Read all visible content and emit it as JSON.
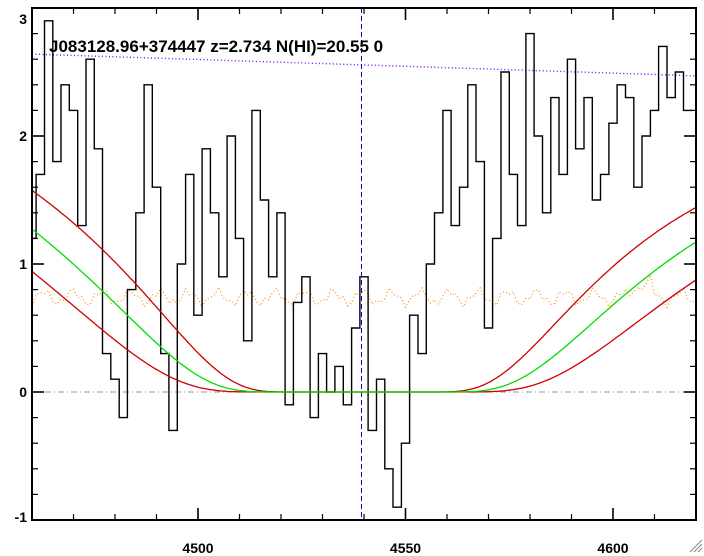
{
  "chart_data": {
    "type": "line",
    "title": "J083128.96+374447 z=2.734 N(HI)=20.55 0",
    "xlabel": "",
    "ylabel": "",
    "xlim": [
      4460,
      4620
    ],
    "ylim": [
      -1,
      3
    ],
    "x_ticks": [
      4500,
      4550,
      4600
    ],
    "y_ticks": [
      -1,
      0,
      1,
      2,
      3
    ],
    "x_minor_step": 10,
    "y_minor_step": 0.2,
    "grid": false,
    "legend": "none",
    "reference_lines": {
      "zero_level": 0,
      "line_center": 4539.4
    },
    "colors": {
      "flux": "#000000",
      "fit": "#00dd00",
      "fit_bounds": "#cc0000",
      "continuum": "#7b00ff",
      "error": "#ff8c00",
      "center_line": "#0000cc",
      "zero_line": "#999999"
    },
    "absorber": {
      "center": 4539.4,
      "log_nhi": 20.55,
      "log_nhi_bounds": [
        20.4,
        20.7
      ]
    },
    "continuum_endpoints": [
      {
        "x": 4460,
        "y": 2.64
      },
      {
        "x": 4620,
        "y": 2.47
      }
    ],
    "flux": {
      "x": [
        4460,
        4462,
        4464,
        4466,
        4468,
        4470,
        4472,
        4474,
        4476,
        4478,
        4480,
        4482,
        4484,
        4486,
        4488,
        4490,
        4492,
        4494,
        4496,
        4498,
        4500,
        4502,
        4504,
        4506,
        4508,
        4510,
        4512,
        4514,
        4516,
        4518,
        4520,
        4522,
        4524,
        4526,
        4528,
        4530,
        4532,
        4534,
        4536,
        4538,
        4540,
        4542,
        4544,
        4546,
        4548,
        4550,
        4552,
        4554,
        4556,
        4558,
        4560,
        4562,
        4564,
        4566,
        4568,
        4570,
        4572,
        4574,
        4576,
        4578,
        4580,
        4582,
        4584,
        4586,
        4588,
        4590,
        4592,
        4594,
        4596,
        4598,
        4600,
        4602,
        4604,
        4606,
        4608,
        4610,
        4612,
        4614,
        4616,
        4618
      ],
      "y": [
        1.2,
        1.7,
        2.9,
        1.8,
        2.4,
        2.2,
        1.3,
        2.6,
        1.9,
        0.3,
        0.1,
        -0.2,
        0.8,
        1.4,
        2.4,
        1.6,
        0.3,
        -0.3,
        1.0,
        1.7,
        0.6,
        1.9,
        1.4,
        0.9,
        2.0,
        1.2,
        0.4,
        2.2,
        1.5,
        0.9,
        1.4,
        -0.1,
        0.7,
        0.9,
        -0.2,
        0.3,
        0.0,
        0.2,
        -0.1,
        0.5,
        0.9,
        -0.3,
        0.1,
        -0.6,
        -0.9,
        -0.4,
        0.6,
        0.3,
        1.0,
        1.4,
        2.2,
        1.3,
        1.6,
        2.4,
        1.8,
        0.5,
        1.2,
        2.5,
        1.7,
        1.3,
        2.8,
        2.0,
        1.4,
        2.3,
        1.7,
        2.6,
        1.9,
        2.3,
        1.5,
        1.7,
        2.1,
        2.4,
        2.3,
        1.6,
        2.0,
        2.2,
        2.7,
        2.3,
        2.5,
        2.2
      ]
    }
  }
}
